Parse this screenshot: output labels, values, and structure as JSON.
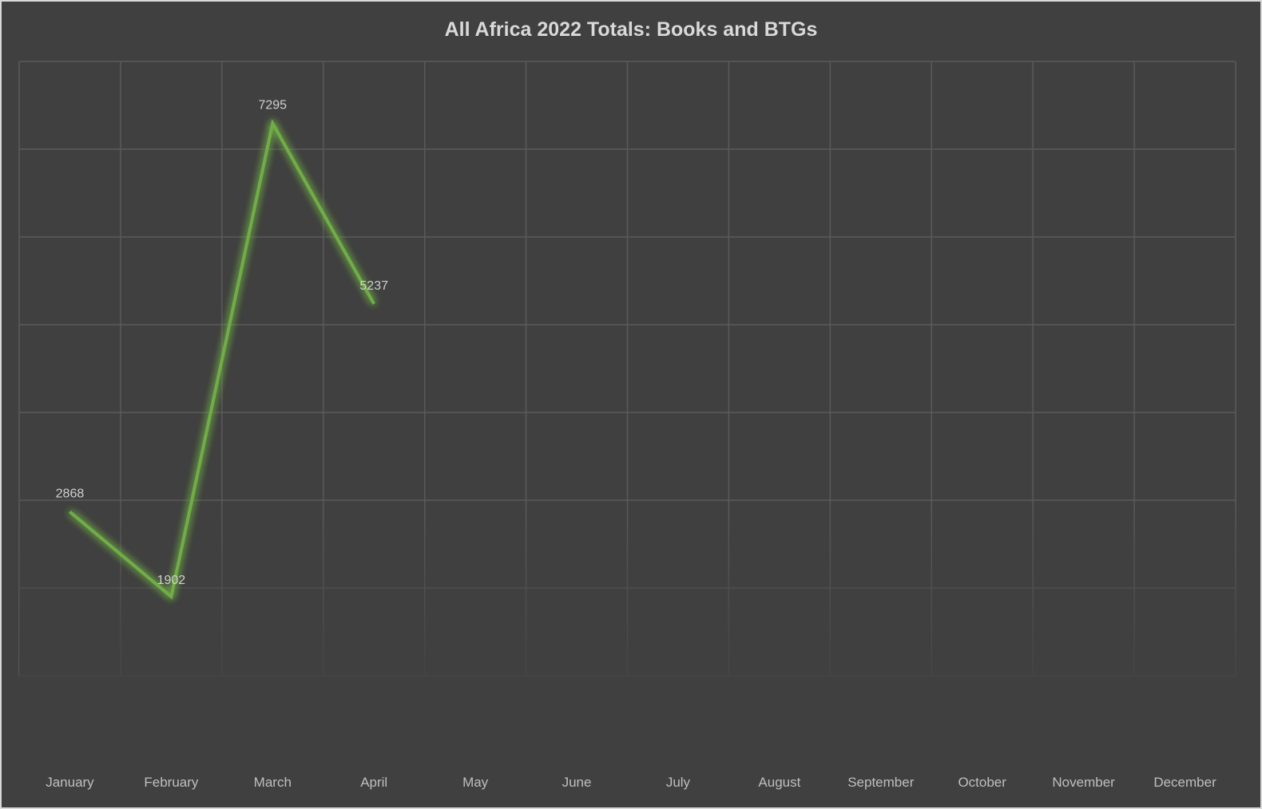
{
  "chart_data": {
    "type": "line",
    "title": "All Africa 2022 Totals: Books and BTGs",
    "categories": [
      "January",
      "February",
      "March",
      "April",
      "May",
      "June",
      "July",
      "August",
      "September",
      "October",
      "November",
      "December"
    ],
    "series": [
      {
        "values": [
          2868,
          1902,
          7295,
          5237,
          null,
          null,
          null,
          null,
          null,
          null,
          null,
          null
        ],
        "data_labels": [
          "2868",
          "1902",
          "7295",
          "5237"
        ]
      }
    ],
    "xlabel": "",
    "ylabel": "",
    "ylim": [
      0,
      8000
    ],
    "y_gridline_step": 1000,
    "y_tick_labels_visible": false,
    "grid": true,
    "legend": "none",
    "colors": {
      "background": "#404040",
      "line": "#70ad47",
      "line_glow": "#7fc24a",
      "grid": "#5a5a5a",
      "title": "#d9d9d9",
      "labels": "#bfbfbf",
      "border": "#d9d9d9"
    }
  }
}
